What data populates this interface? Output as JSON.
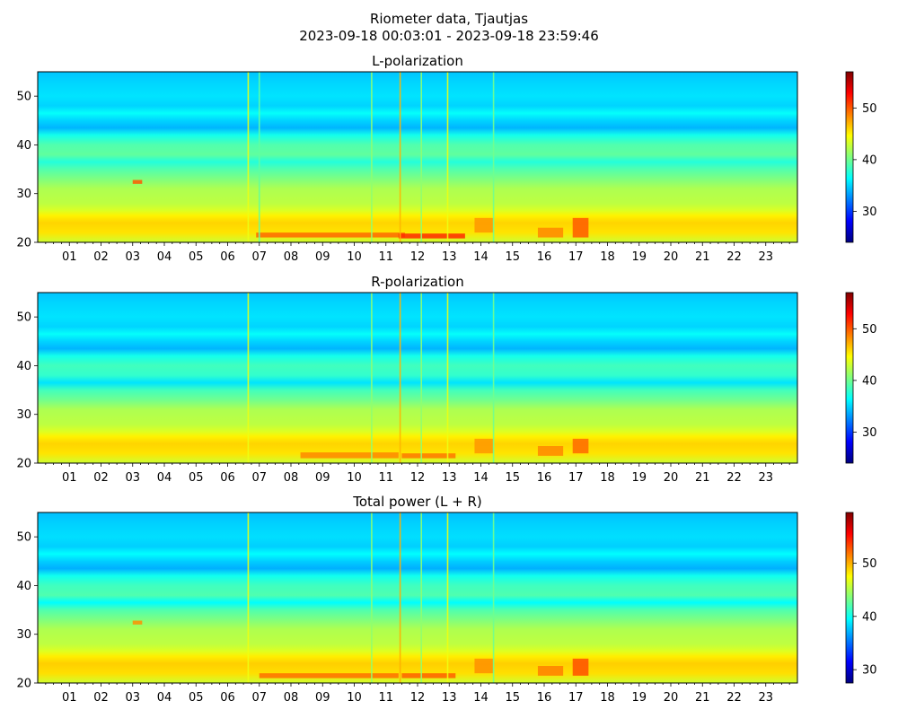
{
  "figure": {
    "title": "Riometer data, Tjautjas",
    "subtitle": "2023-09-18 00:03:01 - 2023-09-18 23:59:46"
  },
  "colors": {
    "colormap": "jet",
    "colormap_stops": [
      "#00007f",
      "#0000ff",
      "#007fff",
      "#00ffff",
      "#7fff7f",
      "#ffff00",
      "#ff7f00",
      "#ff0000",
      "#7f0000"
    ]
  },
  "chart_data": [
    {
      "type": "heatmap",
      "title": "L-polarization",
      "x_ticks": [
        "01",
        "02",
        "03",
        "04",
        "05",
        "06",
        "07",
        "08",
        "09",
        "10",
        "11",
        "12",
        "13",
        "14",
        "15",
        "16",
        "17",
        "18",
        "19",
        "20",
        "21",
        "22",
        "23"
      ],
      "xlim": [
        0,
        24
      ],
      "ylim": [
        20,
        55
      ],
      "y_ticks": [
        20,
        30,
        40,
        50
      ],
      "colorbar": {
        "range": [
          24,
          57
        ],
        "ticks": [
          30,
          40,
          50
        ]
      },
      "profile": [
        {
          "y": 20.0,
          "value": 43.0
        },
        {
          "y": 22.0,
          "value": 45.5
        },
        {
          "y": 24.0,
          "value": 46.0
        },
        {
          "y": 25.5,
          "value": 45.0
        },
        {
          "y": 26.5,
          "value": 43.5
        },
        {
          "y": 28.0,
          "value": 42.5
        },
        {
          "y": 31.0,
          "value": 42.0
        },
        {
          "y": 33.0,
          "value": 40.5
        },
        {
          "y": 35.0,
          "value": 39.0
        },
        {
          "y": 36.5,
          "value": 37.5
        },
        {
          "y": 38.0,
          "value": 39.5
        },
        {
          "y": 40.0,
          "value": 39.0
        },
        {
          "y": 42.0,
          "value": 37.0
        },
        {
          "y": 43.5,
          "value": 34.0
        },
        {
          "y": 45.0,
          "value": 35.0
        },
        {
          "y": 46.5,
          "value": 36.5
        },
        {
          "y": 48.0,
          "value": 35.0
        },
        {
          "y": 50.0,
          "value": 35.5
        },
        {
          "y": 53.0,
          "value": 35.0
        },
        {
          "y": 55.0,
          "value": 34.5
        }
      ],
      "vertical_lines": [
        {
          "x": 6.65,
          "value": 44.0
        },
        {
          "x": 10.55,
          "value": 41.0
        },
        {
          "x": 11.45,
          "value": 47.0
        },
        {
          "x": 12.12,
          "value": 41.0
        },
        {
          "x": 12.95,
          "value": 44.0
        },
        {
          "x": 7.0,
          "value": 39.5
        },
        {
          "x": 14.4,
          "value": 40.0
        }
      ],
      "hot_spots": [
        {
          "x": [
            6.9,
            11.6
          ],
          "y": [
            21.0,
            22.0
          ],
          "value": 49.5
        },
        {
          "x": [
            11.4,
            13.5
          ],
          "y": [
            20.8,
            21.8
          ],
          "value": 51.5
        },
        {
          "x": [
            13.8,
            14.4
          ],
          "y": [
            22.0,
            25.0
          ],
          "value": 48.0
        },
        {
          "x": [
            15.8,
            16.6
          ],
          "y": [
            21.0,
            23.0
          ],
          "value": 48.5
        },
        {
          "x": [
            16.9,
            17.4
          ],
          "y": [
            21.0,
            25.0
          ],
          "value": 50.0
        },
        {
          "x": [
            3.0,
            3.3
          ],
          "y": [
            32.0,
            32.8
          ],
          "value": 50.0
        }
      ]
    },
    {
      "type": "heatmap",
      "title": "R-polarization",
      "x_ticks": [
        "01",
        "02",
        "03",
        "04",
        "05",
        "06",
        "07",
        "08",
        "09",
        "10",
        "11",
        "12",
        "13",
        "14",
        "15",
        "16",
        "17",
        "18",
        "19",
        "20",
        "21",
        "22",
        "23"
      ],
      "xlim": [
        0,
        24
      ],
      "ylim": [
        20,
        55
      ],
      "y_ticks": [
        20,
        30,
        40,
        50
      ],
      "colorbar": {
        "range": [
          24,
          57
        ],
        "ticks": [
          30,
          40,
          50
        ]
      },
      "profile": [
        {
          "y": 20.0,
          "value": 43.0
        },
        {
          "y": 22.0,
          "value": 45.5
        },
        {
          "y": 24.0,
          "value": 46.0
        },
        {
          "y": 25.5,
          "value": 45.0
        },
        {
          "y": 26.5,
          "value": 43.5
        },
        {
          "y": 28.0,
          "value": 42.5
        },
        {
          "y": 31.0,
          "value": 42.0
        },
        {
          "y": 33.0,
          "value": 40.0
        },
        {
          "y": 35.0,
          "value": 38.5
        },
        {
          "y": 36.5,
          "value": 35.5
        },
        {
          "y": 38.0,
          "value": 38.0
        },
        {
          "y": 40.0,
          "value": 38.5
        },
        {
          "y": 42.0,
          "value": 37.0
        },
        {
          "y": 43.5,
          "value": 34.0
        },
        {
          "y": 45.0,
          "value": 35.0
        },
        {
          "y": 46.5,
          "value": 36.5
        },
        {
          "y": 48.0,
          "value": 35.0
        },
        {
          "y": 50.0,
          "value": 35.5
        },
        {
          "y": 53.0,
          "value": 35.0
        },
        {
          "y": 55.0,
          "value": 34.5
        }
      ],
      "vertical_lines": [
        {
          "x": 6.65,
          "value": 44.0
        },
        {
          "x": 10.55,
          "value": 41.0
        },
        {
          "x": 11.45,
          "value": 47.0
        },
        {
          "x": 12.12,
          "value": 41.0
        },
        {
          "x": 12.95,
          "value": 44.0
        },
        {
          "x": 14.4,
          "value": 40.0
        }
      ],
      "hot_spots": [
        {
          "x": [
            8.3,
            11.4
          ],
          "y": [
            21.0,
            22.2
          ],
          "value": 48.5
        },
        {
          "x": [
            11.5,
            13.2
          ],
          "y": [
            21.0,
            22.0
          ],
          "value": 49.0
        },
        {
          "x": [
            13.8,
            14.4
          ],
          "y": [
            22.0,
            25.0
          ],
          "value": 48.0
        },
        {
          "x": [
            15.8,
            16.6
          ],
          "y": [
            21.5,
            23.5
          ],
          "value": 48.5
        },
        {
          "x": [
            16.9,
            17.4
          ],
          "y": [
            22.0,
            25.0
          ],
          "value": 49.5
        }
      ]
    },
    {
      "type": "heatmap",
      "title": "Total power (L + R)",
      "x_ticks": [
        "01",
        "02",
        "03",
        "04",
        "05",
        "06",
        "07",
        "08",
        "09",
        "10",
        "11",
        "12",
        "13",
        "14",
        "15",
        "16",
        "17",
        "18",
        "19",
        "20",
        "21",
        "22",
        "23"
      ],
      "xlim": [
        0,
        24
      ],
      "ylim": [
        20,
        55
      ],
      "y_ticks": [
        20,
        30,
        40,
        50
      ],
      "colorbar": {
        "range": [
          27.5,
          59.5
        ],
        "ticks": [
          30,
          40,
          50
        ]
      },
      "profile": [
        {
          "y": 20.0,
          "value": 46.0
        },
        {
          "y": 22.0,
          "value": 48.5
        },
        {
          "y": 24.0,
          "value": 49.0
        },
        {
          "y": 25.5,
          "value": 48.0
        },
        {
          "y": 26.5,
          "value": 46.5
        },
        {
          "y": 28.0,
          "value": 45.5
        },
        {
          "y": 31.0,
          "value": 45.0
        },
        {
          "y": 33.0,
          "value": 43.5
        },
        {
          "y": 35.0,
          "value": 42.0
        },
        {
          "y": 36.5,
          "value": 39.5
        },
        {
          "y": 38.0,
          "value": 42.0
        },
        {
          "y": 40.0,
          "value": 41.5
        },
        {
          "y": 42.0,
          "value": 40.0
        },
        {
          "y": 43.5,
          "value": 37.0
        },
        {
          "y": 45.0,
          "value": 38.0
        },
        {
          "y": 46.5,
          "value": 39.5
        },
        {
          "y": 48.0,
          "value": 38.0
        },
        {
          "y": 50.0,
          "value": 38.5
        },
        {
          "y": 53.0,
          "value": 38.0
        },
        {
          "y": 55.0,
          "value": 37.5
        }
      ],
      "vertical_lines": [
        {
          "x": 6.65,
          "value": 47.0
        },
        {
          "x": 10.55,
          "value": 44.0
        },
        {
          "x": 11.45,
          "value": 50.0
        },
        {
          "x": 12.12,
          "value": 44.0
        },
        {
          "x": 12.95,
          "value": 47.0
        },
        {
          "x": 14.4,
          "value": 43.0
        }
      ],
      "hot_spots": [
        {
          "x": [
            7.0,
            11.4
          ],
          "y": [
            21.0,
            22.0
          ],
          "value": 52.0
        },
        {
          "x": [
            11.5,
            13.2
          ],
          "y": [
            21.0,
            22.0
          ],
          "value": 52.5
        },
        {
          "x": [
            13.8,
            14.4
          ],
          "y": [
            22.0,
            25.0
          ],
          "value": 51.0
        },
        {
          "x": [
            15.8,
            16.6
          ],
          "y": [
            21.5,
            23.5
          ],
          "value": 51.5
        },
        {
          "x": [
            16.9,
            17.4
          ],
          "y": [
            21.5,
            25.0
          ],
          "value": 53.0
        },
        {
          "x": [
            3.0,
            3.3
          ],
          "y": [
            32.0,
            32.8
          ],
          "value": 51.0
        }
      ]
    }
  ]
}
